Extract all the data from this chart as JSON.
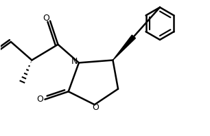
{
  "bg_color": "#ffffff",
  "line_color": "#000000",
  "line_width": 1.8,
  "figsize": [
    3.06,
    1.98
  ],
  "dpi": 100,
  "xlim": [
    0.5,
    8.5
  ],
  "ylim": [
    0.8,
    6.0
  ],
  "N_label_fontsize": 9,
  "O_label_fontsize": 9
}
